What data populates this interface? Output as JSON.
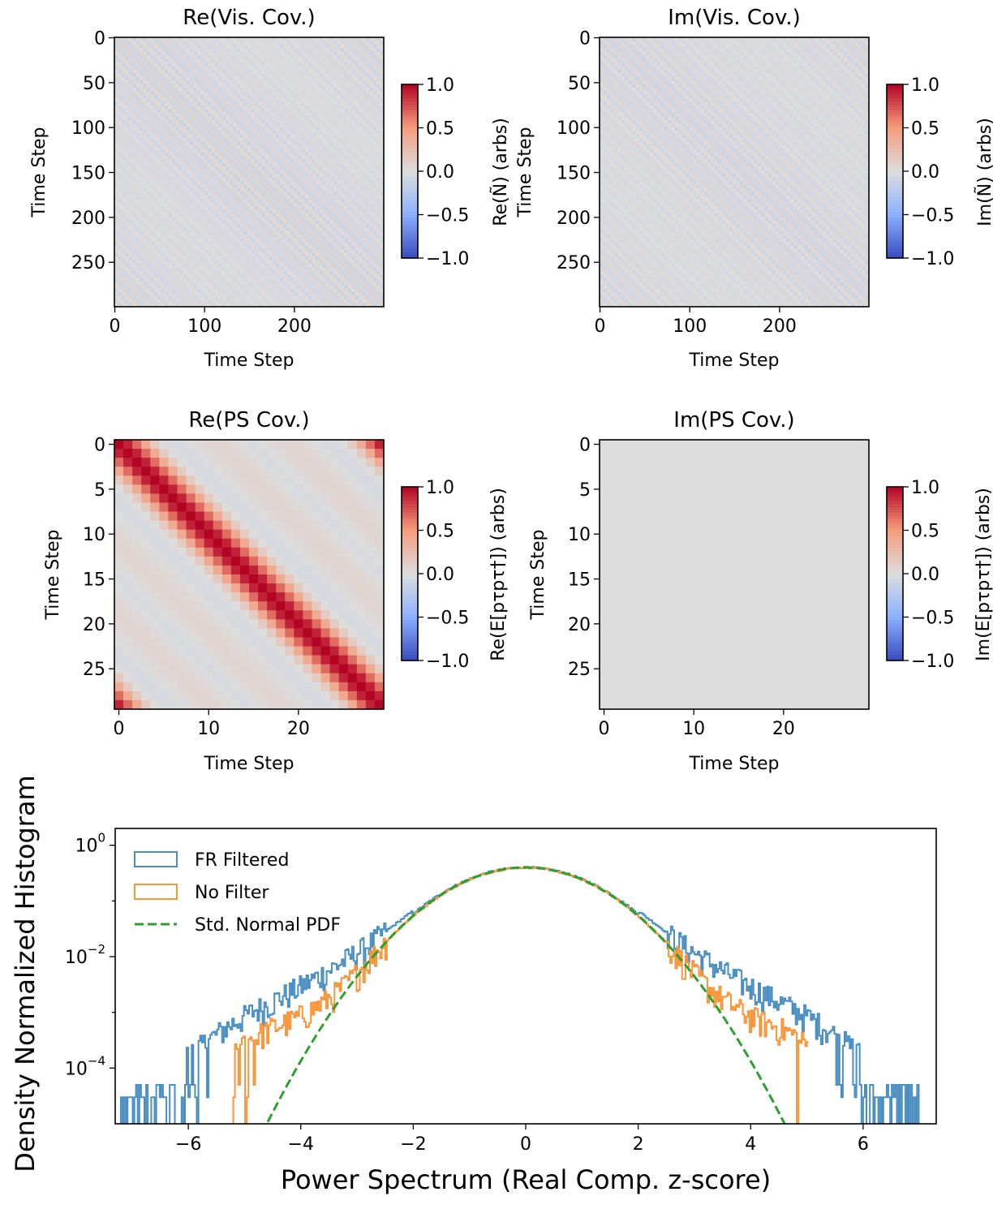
{
  "chart_data": [
    {
      "type": "heatmap",
      "title": "Re(Vis. Cov.)",
      "xlabel": "Time Step",
      "ylabel": "Time Step",
      "xticks": [
        "0",
        "100",
        "200"
      ],
      "yticks": [
        "0",
        "50",
        "100",
        "150",
        "200",
        "250"
      ],
      "size": 300,
      "colorbar_label": "Re(Ñ) (arbs)",
      "colorbar_ticks": [
        "1.0",
        "0.5",
        "0.0",
        "−0.5",
        "−1.0"
      ],
      "colormap": "coolwarm",
      "vmin": -1,
      "vmax": 1
    },
    {
      "type": "heatmap",
      "title": "Im(Vis. Cov.)",
      "xlabel": "Time Step",
      "ylabel": "Time Step",
      "xticks": [
        "0",
        "100",
        "200"
      ],
      "yticks": [
        "0",
        "50",
        "100",
        "150",
        "200",
        "250"
      ],
      "size": 300,
      "colorbar_label": "Im(Ñ) (arbs)",
      "colorbar_ticks": [
        "1.0",
        "0.5",
        "0.0",
        "−0.5",
        "−1.0"
      ],
      "colormap": "coolwarm",
      "vmin": -1,
      "vmax": 1
    },
    {
      "type": "heatmap",
      "title": "Re(PS Cov.)",
      "xlabel": "Time Step",
      "ylabel": "Time Step",
      "xticks": [
        "0",
        "10",
        "20"
      ],
      "yticks": [
        "0",
        "5",
        "10",
        "15",
        "20",
        "25"
      ],
      "size": 30,
      "colorbar_label": "Re(E[pτpτ†]) (arbs)",
      "colorbar_ticks": [
        "1.0",
        "0.5",
        "0.0",
        "−0.5",
        "−1.0"
      ],
      "colormap": "coolwarm",
      "vmin": -1,
      "vmax": 1
    },
    {
      "type": "heatmap",
      "title": "Im(PS Cov.)",
      "xlabel": "Time Step",
      "ylabel": "Time Step",
      "xticks": [
        "0",
        "10",
        "20"
      ],
      "yticks": [
        "0",
        "5",
        "10",
        "15",
        "20",
        "25"
      ],
      "size": 30,
      "colorbar_label": "Im(E[pτpτ†]) (arbs)",
      "colorbar_ticks": [
        "1.0",
        "0.5",
        "0.0",
        "−0.5",
        "−1.0"
      ],
      "colormap": "coolwarm",
      "vmin": -1,
      "vmax": 1
    },
    {
      "type": "line",
      "xlabel": "Power Spectrum (Real Comp. z-score)",
      "ylabel": "Density Normalized Histogram",
      "xlim": [
        -7.3,
        7.3
      ],
      "ylim": [
        1e-05,
        2
      ],
      "yscale": "log",
      "xticks": [
        "−6",
        "−4",
        "−2",
        "0",
        "2",
        "4",
        "6"
      ],
      "yticks": [
        "10^0",
        "10^−2",
        "10^−4"
      ],
      "legend_position": "top-left",
      "series": [
        {
          "name": "FR Filtered",
          "style": "step",
          "color": "#4a8ec2",
          "support": [
            -7.2,
            7.0
          ],
          "tail_floor": 3e-05
        },
        {
          "name": "No Filter",
          "style": "step",
          "color": "#f7963a",
          "support": [
            -5.2,
            5.0
          ],
          "tail_floor": 3e-05
        },
        {
          "name": "Std. Normal PDF",
          "style": "dashed",
          "color": "#2ca02c",
          "mean": 0,
          "std": 1
        }
      ]
    }
  ]
}
